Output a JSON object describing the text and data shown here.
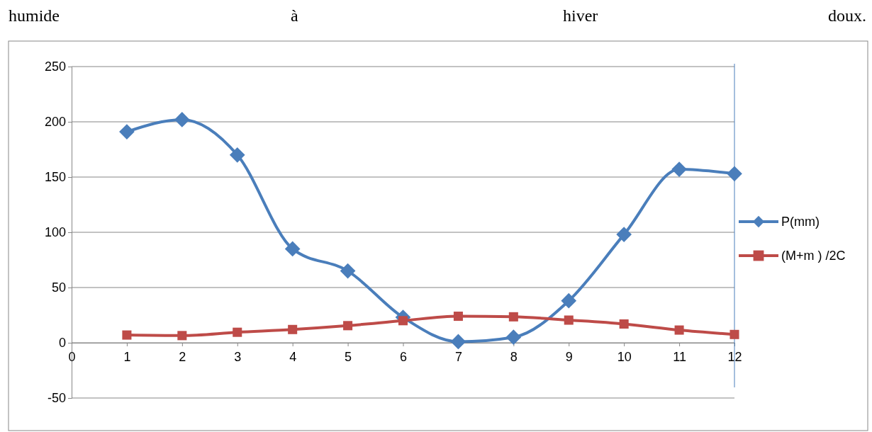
{
  "chart_data": {
    "type": "line",
    "annotations": [
      "humide à hiver doux."
    ],
    "x": [
      1,
      2,
      3,
      4,
      5,
      6,
      7,
      8,
      9,
      10,
      11,
      12
    ],
    "series": [
      {
        "name": "P(mm)",
        "color": "#4a7ebb",
        "marker": "diamond",
        "values": [
          191,
          202,
          170,
          85,
          65,
          23,
          1,
          5,
          38,
          98,
          157,
          153
        ]
      },
      {
        "name": "(M+m ) /2C",
        "color": "#be4b48",
        "marker": "square",
        "values": [
          7,
          6.5,
          9.5,
          12,
          15.5,
          20,
          24,
          23.5,
          20.5,
          17,
          11.5,
          7.5
        ]
      }
    ],
    "xlim": [
      0,
      12
    ],
    "xticks": [
      0,
      1,
      2,
      3,
      4,
      5,
      6,
      7,
      8,
      9,
      10,
      11,
      12
    ],
    "ylim": [
      -50,
      250
    ],
    "yticks": [
      -50,
      0,
      50,
      100,
      150,
      200,
      250
    ],
    "grid": "y",
    "legend": "right",
    "line_style": "solid",
    "ref_lines": [
      {
        "axis": "x",
        "value": 12,
        "color": "#4a7ebb"
      }
    ]
  }
}
